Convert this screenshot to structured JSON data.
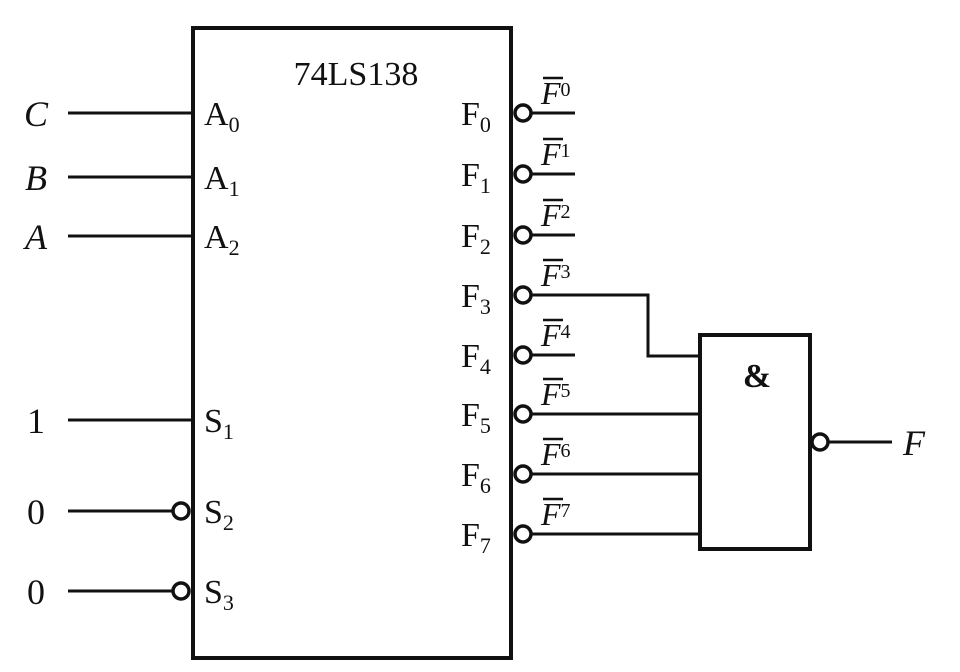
{
  "chip": {
    "name": "74LS138"
  },
  "inputs": [
    {
      "signal": "C",
      "pin": "A",
      "sub": "0",
      "italic": true,
      "bubble": false
    },
    {
      "signal": "B",
      "pin": "A",
      "sub": "1",
      "italic": true,
      "bubble": false
    },
    {
      "signal": "A",
      "pin": "A",
      "sub": "2",
      "italic": true,
      "bubble": false
    },
    {
      "signal": "1",
      "pin": "S",
      "sub": "1",
      "italic": false,
      "bubble": false
    },
    {
      "signal": "0",
      "pin": "S",
      "sub": "2",
      "italic": false,
      "bubble": true
    },
    {
      "signal": "0",
      "pin": "S",
      "sub": "3",
      "italic": false,
      "bubble": true
    }
  ],
  "outputs": [
    {
      "pin": "F",
      "sub": "0",
      "wire_label": "F",
      "wire_sub": "0",
      "to_gate": false
    },
    {
      "pin": "F",
      "sub": "1",
      "wire_label": "F",
      "wire_sub": "1",
      "to_gate": false
    },
    {
      "pin": "F",
      "sub": "2",
      "wire_label": "F",
      "wire_sub": "2",
      "to_gate": false
    },
    {
      "pin": "F",
      "sub": "3",
      "wire_label": "F",
      "wire_sub": "3",
      "to_gate": true
    },
    {
      "pin": "F",
      "sub": "4",
      "wire_label": "F",
      "wire_sub": "4",
      "to_gate": false
    },
    {
      "pin": "F",
      "sub": "5",
      "wire_label": "F",
      "wire_sub": "5",
      "to_gate": true
    },
    {
      "pin": "F",
      "sub": "6",
      "wire_label": "F",
      "wire_sub": "6",
      "to_gate": true
    },
    {
      "pin": "F",
      "sub": "7",
      "wire_label": "F",
      "wire_sub": "7",
      "to_gate": true
    }
  ],
  "gate": {
    "symbol": "&",
    "output_label": "F"
  }
}
